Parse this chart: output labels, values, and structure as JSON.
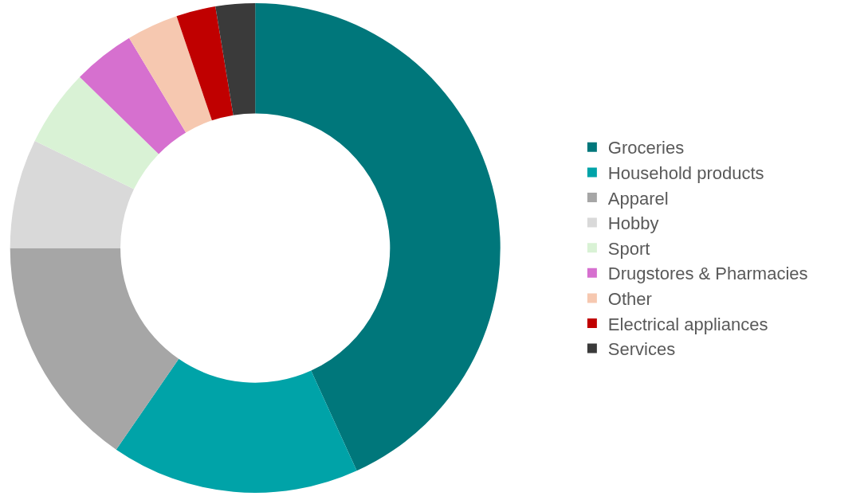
{
  "chart_data": {
    "type": "donut",
    "categories": [
      "Groceries",
      "Household products",
      "Apparel",
      "Hobby",
      "Sport",
      "Drugstores & Pharmacies",
      "Other",
      "Electrical appliances",
      "Services"
    ],
    "values": [
      43.2,
      16.4,
      15.4,
      7.2,
      5.1,
      4.1,
      3.4,
      2.6,
      2.6
    ],
    "colors": [
      "#00777b",
      "#00a3a8",
      "#a6a6a6",
      "#d9d9d9",
      "#d9f2d5",
      "#d670cf",
      "#f6c8b0",
      "#c00000",
      "#3a3a3a"
    ],
    "legend": "right"
  }
}
